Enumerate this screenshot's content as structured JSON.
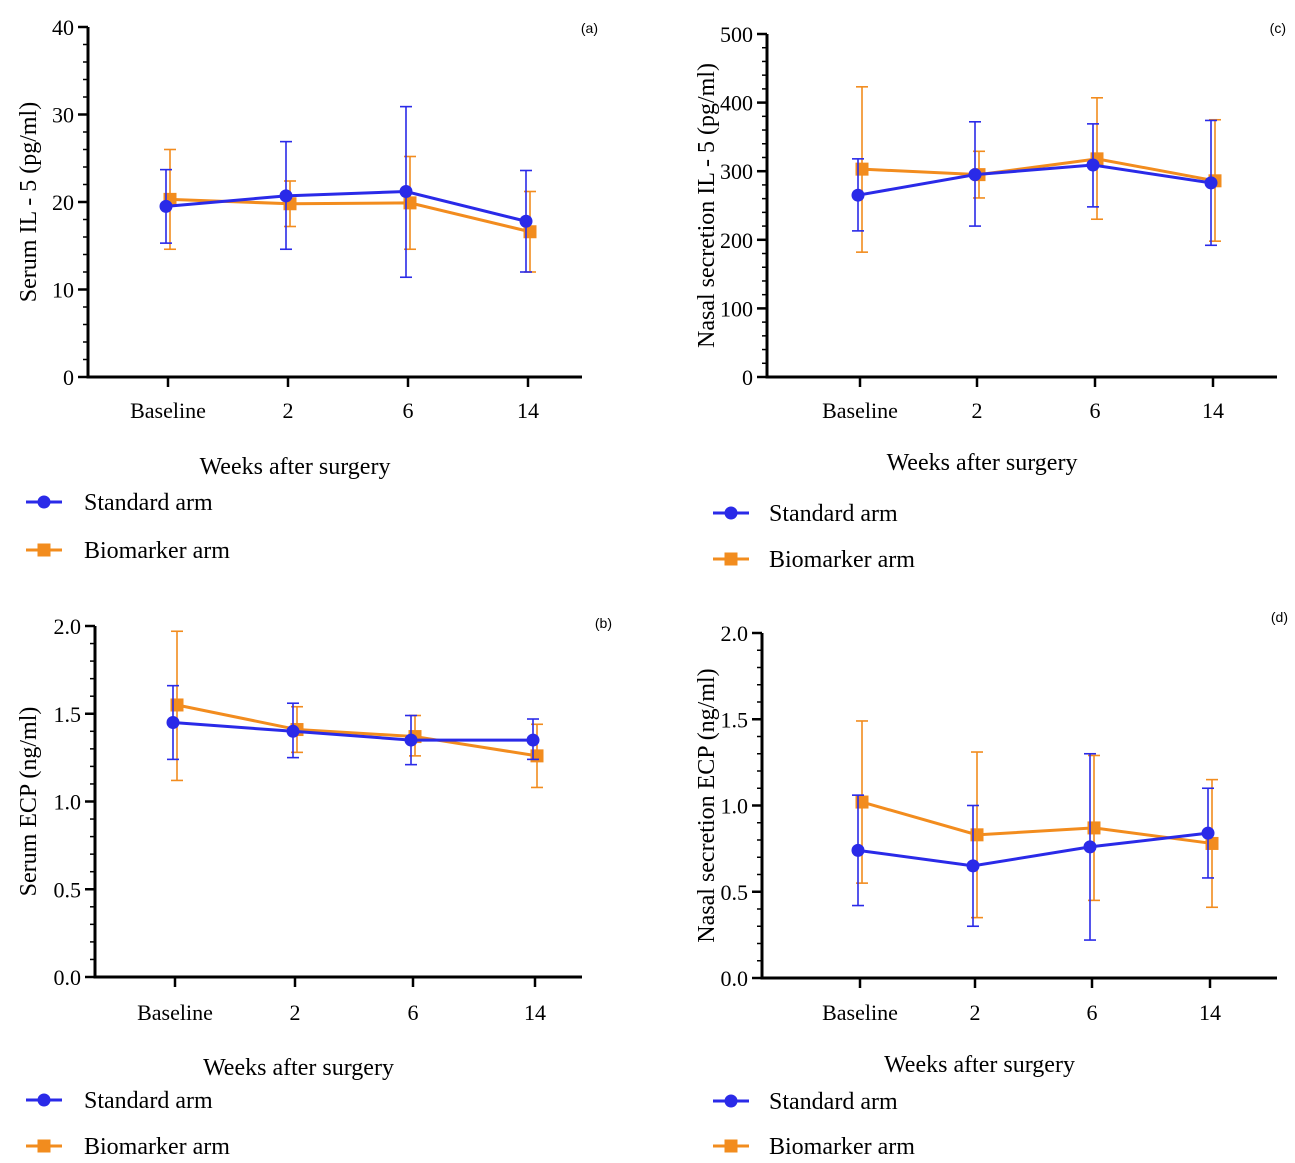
{
  "colors": {
    "standard": "#2a2ae8",
    "biomarker": "#f28c1e"
  },
  "chart_data": [
    {
      "type": "line",
      "panel_label": "(a)",
      "ylabel": "Serum IL - 5 (pg/ml)",
      "xlabel": "Weeks after surgery",
      "categories": [
        "Baseline",
        "2",
        "6",
        "14"
      ],
      "ylim": [
        0,
        40
      ],
      "yticks": [
        "0",
        "10",
        "20",
        "30",
        "40"
      ],
      "legend_position": "bottom-left",
      "series": [
        {
          "name": "Standard arm",
          "marker": "circle",
          "color": "#2a2ae8",
          "values": [
            19.5,
            20.7,
            21.2,
            17.8
          ],
          "err_low": [
            15.3,
            14.6,
            11.4,
            12.0
          ],
          "err_high": [
            23.7,
            26.9,
            30.9,
            23.6
          ]
        },
        {
          "name": "Biomarker arm",
          "marker": "square",
          "color": "#f28c1e",
          "values": [
            20.3,
            19.8,
            19.9,
            16.6
          ],
          "err_low": [
            14.6,
            17.2,
            14.6,
            12.0
          ],
          "err_high": [
            26.0,
            22.4,
            25.2,
            21.2
          ]
        }
      ]
    },
    {
      "type": "line",
      "panel_label": "(c)",
      "ylabel": "Nasal secretion  IL - 5 (pg/ml)",
      "xlabel": "Weeks after surgery",
      "categories": [
        "Baseline",
        "2",
        "6",
        "14"
      ],
      "ylim": [
        0,
        500
      ],
      "yticks": [
        "0",
        "100",
        "200",
        "300",
        "400",
        "500"
      ],
      "legend_position": "bottom-left",
      "series": [
        {
          "name": "Standard arm",
          "marker": "circle",
          "color": "#2a2ae8",
          "values": [
            265,
            295,
            309,
            283
          ],
          "err_low": [
            213,
            220,
            248,
            192
          ],
          "err_high": [
            318,
            372,
            369,
            374
          ]
        },
        {
          "name": "Biomarker arm",
          "marker": "square",
          "color": "#f28c1e",
          "values": [
            303,
            295,
            318,
            286
          ],
          "err_low": [
            182,
            261,
            230,
            198
          ],
          "err_high": [
            423,
            329,
            407,
            375
          ]
        }
      ]
    },
    {
      "type": "line",
      "panel_label": "(b)",
      "ylabel": "Serum ECP (ng/ml)",
      "xlabel": "Weeks after surgery",
      "categories": [
        "Baseline",
        "2",
        "6",
        "14"
      ],
      "ylim": [
        0,
        2.0
      ],
      "yticks": [
        "0.0",
        "0.5",
        "1.0",
        "1.5",
        "2.0"
      ],
      "legend_position": "bottom-left",
      "series": [
        {
          "name": "Standard arm",
          "marker": "circle",
          "color": "#2a2ae8",
          "values": [
            1.45,
            1.4,
            1.35,
            1.35
          ],
          "err_low": [
            1.24,
            1.25,
            1.21,
            1.24
          ],
          "err_high": [
            1.66,
            1.56,
            1.49,
            1.47
          ]
        },
        {
          "name": "Biomarker arm",
          "marker": "square",
          "color": "#f28c1e",
          "values": [
            1.55,
            1.41,
            1.37,
            1.26
          ],
          "err_low": [
            1.12,
            1.28,
            1.26,
            1.08
          ],
          "err_high": [
            1.97,
            1.54,
            1.49,
            1.44
          ]
        }
      ]
    },
    {
      "type": "line",
      "panel_label": "(d)",
      "ylabel": "Nasal secretion ECP (ng/ml)",
      "xlabel": "Weeks after surgery",
      "categories": [
        "Baseline",
        "2",
        "6",
        "14"
      ],
      "ylim": [
        0,
        2.0
      ],
      "yticks": [
        "0.0",
        "0.5",
        "1.0",
        "1.5",
        "2.0"
      ],
      "legend_position": "bottom-left",
      "series": [
        {
          "name": "Standard arm",
          "marker": "circle",
          "color": "#2a2ae8",
          "values": [
            0.74,
            0.65,
            0.76,
            0.84
          ],
          "err_low": [
            0.42,
            0.3,
            0.22,
            0.58
          ],
          "err_high": [
            1.06,
            1.0,
            1.3,
            1.1
          ]
        },
        {
          "name": "Biomarker arm",
          "marker": "square",
          "color": "#f28c1e",
          "values": [
            1.02,
            0.83,
            0.87,
            0.78
          ],
          "err_low": [
            0.55,
            0.35,
            0.45,
            0.41
          ],
          "err_high": [
            1.49,
            1.31,
            1.29,
            1.15
          ]
        }
      ]
    }
  ]
}
